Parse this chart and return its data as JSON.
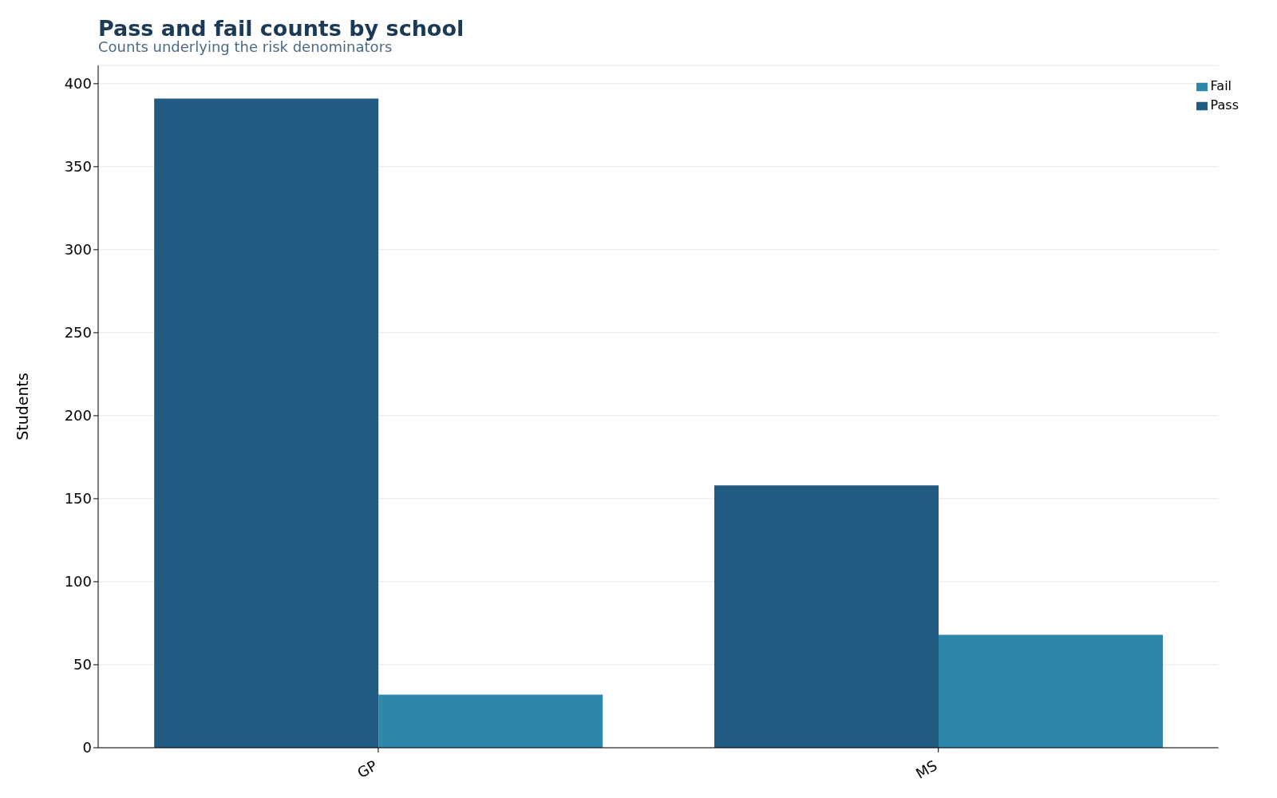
{
  "chart_data": {
    "type": "bar",
    "title": "Pass and fail counts by school",
    "subtitle": "Counts underlying the risk denominators",
    "ylabel": "Students",
    "categories": [
      "GP",
      "MS"
    ],
    "series": [
      {
        "name": "Pass",
        "color": "#215b82",
        "values": [
          391,
          158
        ]
      },
      {
        "name": "Fail",
        "color": "#2e86ab",
        "values": [
          32,
          68
        ]
      }
    ],
    "ylim": [
      0,
      411
    ],
    "yticks": [
      0,
      50,
      100,
      150,
      200,
      250,
      300,
      350,
      400
    ],
    "grid": "y",
    "legend": "top right"
  }
}
